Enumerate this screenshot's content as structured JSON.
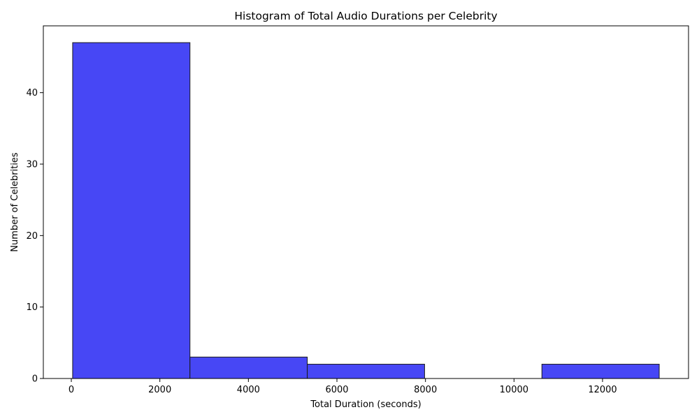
{
  "chart_data": {
    "type": "bar",
    "title": "Histogram of Total Audio Durations per Celebrity",
    "xlabel": "Total Duration (seconds)",
    "ylabel": "Number of Celebrities",
    "bins": [
      {
        "start": 30,
        "end": 2680,
        "count": 47
      },
      {
        "start": 2680,
        "end": 5330,
        "count": 3
      },
      {
        "start": 5330,
        "end": 7980,
        "count": 2
      },
      {
        "start": 7980,
        "end": 10630,
        "count": 0
      },
      {
        "start": 10630,
        "end": 13280,
        "count": 2
      }
    ],
    "xlim": [
      -632,
      13942
    ],
    "ylim": [
      0,
      49.35
    ],
    "xticks": [
      0,
      2000,
      4000,
      6000,
      8000,
      10000,
      12000
    ],
    "yticks": [
      0,
      10,
      20,
      30,
      40
    ],
    "bar_color": "#4747f5",
    "edge_color": "#1a1a1a",
    "grid": false
  }
}
